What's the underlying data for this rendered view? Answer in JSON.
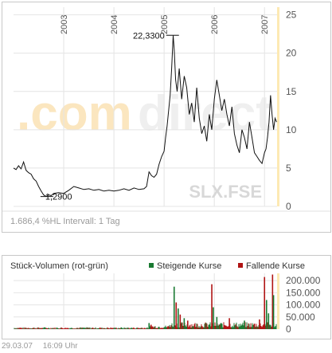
{
  "chart_data": [
    {
      "type": "line",
      "title": "",
      "symbol": "SLX.FSE",
      "watermark": "comdirect",
      "x_ticks": [
        "2003",
        "2004",
        "2005",
        "2006",
        "2007"
      ],
      "y_ticks": [
        0,
        5,
        10,
        15,
        20,
        25
      ],
      "ylim": [
        0,
        26
      ],
      "grid": true,
      "footer_left": "1.686,4 %HL Intervall: 1 Tag",
      "annotations": [
        {
          "label": "22,3300",
          "x": 2005.2,
          "y": 22.33
        },
        {
          "label": "1,2900",
          "x": 2002.6,
          "y": 1.29
        }
      ],
      "series": [
        {
          "x": [
            2002.0,
            2002.05,
            2002.1,
            2002.15,
            2002.2,
            2002.25,
            2002.3,
            2002.35,
            2002.4,
            2002.45,
            2002.5,
            2002.55,
            2002.6,
            2002.65,
            2002.7,
            2002.75,
            2002.8,
            2002.9,
            2003.0,
            2003.1,
            2003.2,
            2003.3,
            2003.4,
            2003.5,
            2003.6,
            2003.7,
            2003.8,
            2003.9,
            2004.0,
            2004.1,
            2004.2,
            2004.3,
            2004.4,
            2004.5,
            2004.6,
            2004.65,
            2004.7,
            2004.75,
            2004.8,
            2004.85,
            2004.9,
            2004.95,
            2005.0,
            2005.03,
            2005.06,
            2005.09,
            2005.12,
            2005.15,
            2005.18,
            2005.2,
            2005.23,
            2005.26,
            2005.3,
            2005.35,
            2005.4,
            2005.45,
            2005.5,
            2005.55,
            2005.6,
            2005.65,
            2005.7,
            2005.75,
            2005.8,
            2005.85,
            2005.9,
            2005.95,
            2006.0,
            2006.05,
            2006.1,
            2006.15,
            2006.2,
            2006.25,
            2006.3,
            2006.35,
            2006.4,
            2006.45,
            2006.5,
            2006.55,
            2006.6,
            2006.65,
            2006.7,
            2006.75,
            2006.8,
            2006.85,
            2006.9,
            2006.95,
            2007.0,
            2007.03,
            2007.06,
            2007.09,
            2007.12,
            2007.15,
            2007.18,
            2007.21,
            2007.24
          ],
          "y": [
            5.0,
            4.8,
            5.3,
            4.9,
            5.8,
            4.7,
            4.4,
            4.2,
            3.6,
            3.3,
            2.6,
            2.0,
            1.5,
            1.3,
            1.5,
            1.4,
            1.7,
            1.8,
            1.7,
            2.1,
            2.6,
            2.4,
            2.2,
            2.3,
            2.1,
            2.2,
            2.0,
            2.1,
            2.0,
            2.1,
            2.3,
            2.1,
            2.4,
            2.2,
            2.3,
            2.6,
            4.5,
            4.0,
            3.8,
            4.2,
            5.5,
            6.5,
            7.2,
            9.0,
            10.5,
            12.5,
            14.5,
            18.0,
            22.3,
            20.5,
            16.5,
            15.0,
            18.0,
            14.0,
            17.0,
            15.5,
            12.0,
            13.5,
            11.0,
            15.5,
            11.5,
            9.5,
            10.5,
            8.5,
            12.0,
            10.0,
            14.0,
            16.5,
            14.5,
            12.5,
            14.0,
            12.0,
            10.5,
            13.0,
            9.5,
            8.0,
            7.0,
            10.0,
            9.0,
            7.5,
            11.0,
            9.0,
            7.0,
            6.5,
            6.0,
            5.6,
            7.0,
            7.5,
            9.0,
            11.0,
            14.5,
            12.0,
            10.0,
            11.5,
            11.0
          ]
        }
      ]
    },
    {
      "type": "bar",
      "title": "Stück-Volumen (rot-grün)",
      "legend": [
        {
          "name": "Steigende Kurse",
          "color": "#1a7a32"
        },
        {
          "name": "Fallende Kurse",
          "color": "#b01414"
        }
      ],
      "legend_position": "top-right",
      "y_ticks": [
        0,
        50000,
        100000,
        150000,
        200000
      ],
      "y_tick_labels": [
        "0",
        "50.000",
        "100.000",
        "150.000",
        "200.000"
      ],
      "ylim": [
        0,
        230000
      ],
      "spikes": [
        {
          "x": 2005.2,
          "value": 175000,
          "color": "#1a7a32"
        },
        {
          "x": 2005.24,
          "value": 110000,
          "color": "#b01414"
        },
        {
          "x": 2005.28,
          "value": 85000,
          "color": "#1a7a32"
        },
        {
          "x": 2005.32,
          "value": 60000,
          "color": "#b01414"
        },
        {
          "x": 2005.4,
          "value": 45000,
          "color": "#1a7a32"
        },
        {
          "x": 2005.47,
          "value": 35000,
          "color": "#b01414"
        },
        {
          "x": 2005.95,
          "value": 185000,
          "color": "#b01414"
        },
        {
          "x": 2005.98,
          "value": 90000,
          "color": "#1a7a32"
        },
        {
          "x": 2006.05,
          "value": 50000,
          "color": "#1a7a32"
        },
        {
          "x": 2006.3,
          "value": 45000,
          "color": "#b01414"
        },
        {
          "x": 2006.6,
          "value": 35000,
          "color": "#1a7a32"
        },
        {
          "x": 2006.9,
          "value": 40000,
          "color": "#b01414"
        },
        {
          "x": 2007.0,
          "value": 215000,
          "color": "#b01414"
        },
        {
          "x": 2007.04,
          "value": 120000,
          "color": "#1a7a32"
        },
        {
          "x": 2007.08,
          "value": 65000,
          "color": "#1a7a32"
        },
        {
          "x": 2007.16,
          "value": 225000,
          "color": "#b01414"
        },
        {
          "x": 2007.18,
          "value": 140000,
          "color": "#1a7a32"
        },
        {
          "x": 2004.7,
          "value": 25000,
          "color": "#1a7a32"
        },
        {
          "x": 2004.74,
          "value": 18000,
          "color": "#b01414"
        }
      ]
    }
  ],
  "footer": {
    "date": "29.03.07",
    "time": "16:09 Uhr"
  }
}
